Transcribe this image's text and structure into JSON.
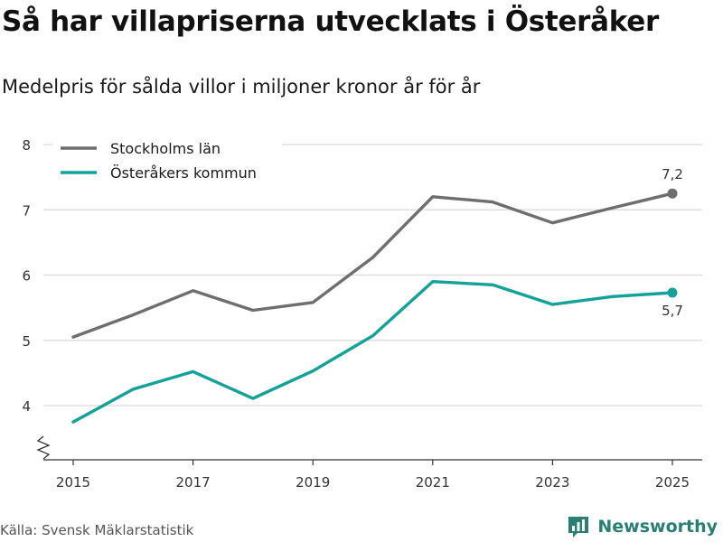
{
  "colors": {
    "stockholm": "#6e6e70",
    "osteraker": "#13a19a",
    "grid": "#d9d9d9",
    "brand": "#2a7f74"
  },
  "brand": {
    "name": "Newsworthy",
    "icon": "bar-chart-bubble-icon"
  },
  "source": "Källa: Svensk Mäklarstatistik",
  "chart_data": {
    "type": "line",
    "title": "Så har villapriserna utvecklats i Österåker",
    "subtitle": "Medelpris för sålda villor i miljoner kronor år för år",
    "xlabel": "",
    "ylabel": "",
    "x": [
      2015,
      2016,
      2017,
      2018,
      2019,
      2020,
      2021,
      2022,
      2023,
      2024,
      2025
    ],
    "x_ticks": [
      "2015",
      "2017",
      "2019",
      "2021",
      "2023",
      "2025"
    ],
    "y_ticks": [
      "4",
      "5",
      "6",
      "7",
      "8"
    ],
    "ylim": [
      3.2,
      8
    ],
    "y_axis_break": true,
    "grid": true,
    "legend_position": "top-left",
    "series": [
      {
        "name": "Stockholms län",
        "values": [
          5.05,
          5.39,
          5.76,
          5.46,
          5.58,
          6.27,
          7.2,
          7.12,
          6.8,
          7.03,
          7.25
        ],
        "end_label": "7,2",
        "end_label_position": "above"
      },
      {
        "name": "Österåkers kommun",
        "values": [
          3.75,
          4.25,
          4.52,
          4.11,
          4.53,
          5.07,
          5.9,
          5.85,
          5.55,
          5.67,
          5.73
        ],
        "end_label": "5,7",
        "end_label_position": "below"
      }
    ]
  }
}
